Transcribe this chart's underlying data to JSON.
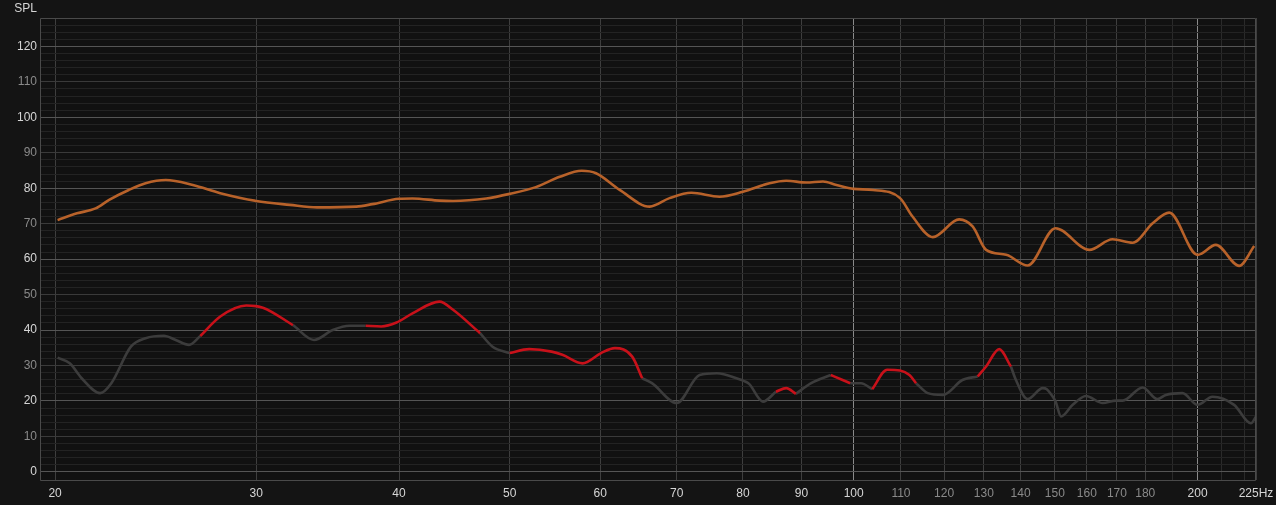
{
  "chart_data": {
    "type": "line",
    "ylabel": "SPL",
    "log": "x",
    "grid": true,
    "legend": false,
    "xlim": [
      19.4,
      225
    ],
    "ylim": [
      -2.3,
      128
    ],
    "xticks": [
      20,
      30,
      40,
      50,
      60,
      70,
      80,
      90,
      100,
      110,
      120,
      130,
      140,
      150,
      160,
      170,
      180,
      {
        "value": 190,
        "label": null
      },
      200,
      {
        "value": 210,
        "label": null
      },
      {
        "value": 220,
        "label": null
      },
      {
        "value": 225,
        "label": "225Hz"
      }
    ],
    "yticks": [
      0,
      {
        "value": 2,
        "label": null
      },
      {
        "value": 4,
        "label": null
      },
      {
        "value": 6,
        "label": null
      },
      {
        "value": 8,
        "label": null
      },
      10,
      {
        "value": 12,
        "label": null
      },
      {
        "value": 14,
        "label": null
      },
      {
        "value": 16,
        "label": null
      },
      {
        "value": 18,
        "label": null
      },
      20,
      {
        "value": 22,
        "label": null
      },
      {
        "value": 24,
        "label": null
      },
      {
        "value": 26,
        "label": null
      },
      {
        "value": 28,
        "label": null
      },
      30,
      {
        "value": 32,
        "label": null
      },
      {
        "value": 34,
        "label": null
      },
      {
        "value": 36,
        "label": null
      },
      {
        "value": 38,
        "label": null
      },
      40,
      {
        "value": 42,
        "label": null
      },
      {
        "value": 44,
        "label": null
      },
      {
        "value": 46,
        "label": null
      },
      {
        "value": 48,
        "label": null
      },
      50,
      {
        "value": 52,
        "label": null
      },
      {
        "value": 54,
        "label": null
      },
      {
        "value": 56,
        "label": null
      },
      {
        "value": 58,
        "label": null
      },
      60,
      {
        "value": 62,
        "label": null
      },
      {
        "value": 64,
        "label": null
      },
      {
        "value": 66,
        "label": null
      },
      {
        "value": 68,
        "label": null
      },
      70,
      {
        "value": 72,
        "label": null
      },
      {
        "value": 74,
        "label": null
      },
      {
        "value": 76,
        "label": null
      },
      {
        "value": 78,
        "label": null
      },
      80,
      {
        "value": 82,
        "label": null
      },
      {
        "value": 84,
        "label": null
      },
      {
        "value": 86,
        "label": null
      },
      {
        "value": 88,
        "label": null
      },
      90,
      {
        "value": 92,
        "label": null
      },
      {
        "value": 94,
        "label": null
      },
      {
        "value": 96,
        "label": null
      },
      {
        "value": 98,
        "label": null
      },
      100,
      {
        "value": 102,
        "label": null
      },
      {
        "value": 104,
        "label": null
      },
      {
        "value": 106,
        "label": null
      },
      {
        "value": 108,
        "label": null
      },
      110,
      {
        "value": 112,
        "label": null
      },
      {
        "value": 114,
        "label": null
      },
      {
        "value": 116,
        "label": null
      },
      {
        "value": 118,
        "label": null
      },
      120,
      {
        "value": 122,
        "label": null
      },
      {
        "value": 124,
        "label": null
      },
      {
        "value": 126,
        "label": null
      }
    ],
    "series": [
      {
        "color": "#b8622a",
        "x": [
          20.1,
          20.9,
          21.7,
          22.3,
          23.2,
          24.0,
          25.0,
          26.4,
          27.9,
          30.0,
          32.1,
          33.9,
          36.7,
          37.9,
          40.0,
          41.1,
          43.4,
          44.6,
          47.7,
          50.0,
          52.7,
          55.3,
          57.8,
          59.5,
          62.4,
          66.3,
          69.0,
          72.1,
          76.3,
          80.0,
          84.4,
          87.3,
          90.9,
          94.0,
          96.6,
          100,
          104.0,
          109.8,
          112.6,
          117.3,
          123.7,
          127.1,
          130.6,
          136.0,
          142.0,
          150.2,
          160.8,
          168.5,
          175.5,
          182.7,
          188.9,
          200,
          207.5,
          217.5,
          224.2
        ],
        "values": [
          71.0,
          72.9,
          74.3,
          76.7,
          79.5,
          81.4,
          82.3,
          80.9,
          78.6,
          76.4,
          75.3,
          74.6,
          74.8,
          75.5,
          77.0,
          77.1,
          76.5,
          76.4,
          77.1,
          78.4,
          80.3,
          83.2,
          84.9,
          84.2,
          79.5,
          74.8,
          77.2,
          78.7,
          77.6,
          79.0,
          81.4,
          82.1,
          81.6,
          81.9,
          80.9,
          79.8,
          79.5,
          77.2,
          72.0,
          66.2,
          71.2,
          69.2,
          62.6,
          61.2,
          58.2,
          68.7,
          62.6,
          65.6,
          64.6,
          70.1,
          73.1,
          61.2,
          64.0,
          58.1,
          63.7
        ]
      },
      {
        "color": "#3c3c3c",
        "x": [
          20.1,
          20.6,
          21.1,
          21.9,
          22.4,
          23.3,
          24.0,
          24.9,
          25.5,
          26.2,
          26.8,
          27.9,
          29.4,
          30.4,
          32.3,
          33.7,
          35.0,
          36.2,
          37.4,
          38.6,
          39.8,
          41.1,
          43.4,
          44.6,
          47.1,
          48.3,
          50.0,
          52.0,
          54.4,
          55.6,
          57.9,
          60.1,
          61.8,
          64.0,
          65.3,
          66.6,
          70.0,
          73.3,
          75.9,
          79.3,
          80.2,
          81.0,
          83.3,
          85.5,
          87.3,
          89.0,
          91.8,
          95.5,
          97.8,
          99.3,
          101.5,
          103.8,
          107.0,
          109.8,
          111.9,
          113.4,
          116.1,
          119.7,
          124.5,
          128.4,
          130.6,
          134.1,
          137.3,
          138.7,
          142.0,
          146.4,
          147.6,
          149.0,
          150.2,
          151.9,
          155.5,
          159.7,
          165.2,
          169.7,
          172.0,
          179.0,
          184.5,
          187.6,
          194.0,
          200,
          206.1,
          215.3,
          222.7,
          225
        ],
        "values": [
          32.2,
          30.6,
          26.4,
          22.2,
          25.0,
          35.3,
          37.7,
          38.4,
          37.2,
          35.8,
          38.3,
          null,
          null,
          null,
          41.4,
          37.2,
          40.0,
          41.2,
          41.2,
          null,
          null,
          null,
          null,
          null,
          39.1,
          35.3,
          33.5,
          null,
          null,
          null,
          null,
          null,
          null,
          null,
          26.4,
          25.0,
          19.4,
          27.3,
          27.8,
          26.2,
          25.6,
          24.8,
          19.8,
          22.6,
          null,
          22.0,
          25.0,
          27.3,
          null,
          25.0,
          25.0,
          23.3,
          null,
          null,
          null,
          25.0,
          22.2,
          21.7,
          25.9,
          26.9,
          null,
          null,
          29.7,
          25.9,
          20.5,
          23.6,
          23.3,
          21.7,
          19.9,
          15.6,
          18.9,
          21.4,
          19.4,
          20.1,
          20.1,
          23.8,
          20.5,
          21.7,
          22.2,
          18.9,
          21.2,
          18.9,
          13.7,
          15.6
        ]
      },
      {
        "color": "#c8111a",
        "x": [
          26.8,
          27.9,
          29.4,
          30.4,
          32.3
        ],
        "values": [
          38.3,
          43.8,
          46.9,
          46.3,
          41.4
        ]
      },
      {
        "color": "#c8111a",
        "x": [
          37.4,
          38.6,
          39.8,
          41.1,
          43.4,
          44.6,
          47.1
        ],
        "values": [
          41.2,
          41.0,
          42.1,
          44.7,
          48.0,
          45.7,
          39.1
        ]
      },
      {
        "color": "#c8111a",
        "x": [
          50.0,
          52.0,
          54.4,
          55.6,
          57.9,
          60.1,
          61.8,
          64.0,
          65.3
        ],
        "values": [
          33.5,
          34.6,
          33.9,
          33.0,
          30.6,
          33.5,
          34.9,
          32.5,
          26.4
        ]
      },
      {
        "color": "#c8111a",
        "x": [
          85.5,
          87.3,
          89.0
        ],
        "values": [
          22.6,
          23.6,
          22.0
        ]
      },
      {
        "color": "#c8111a",
        "x": [
          95.5,
          97.8,
          99.3
        ],
        "values": [
          27.3,
          25.9,
          25.0
        ]
      },
      {
        "color": "#c8111a",
        "x": [
          103.8,
          107.0,
          109.8,
          111.9,
          113.4
        ],
        "values": [
          23.3,
          28.8,
          28.6,
          27.3,
          25.0
        ]
      },
      {
        "color": "#c8111a",
        "x": [
          128.4,
          130.6,
          134.1,
          137.3
        ],
        "values": [
          26.9,
          29.7,
          34.6,
          29.7
        ]
      }
    ]
  }
}
